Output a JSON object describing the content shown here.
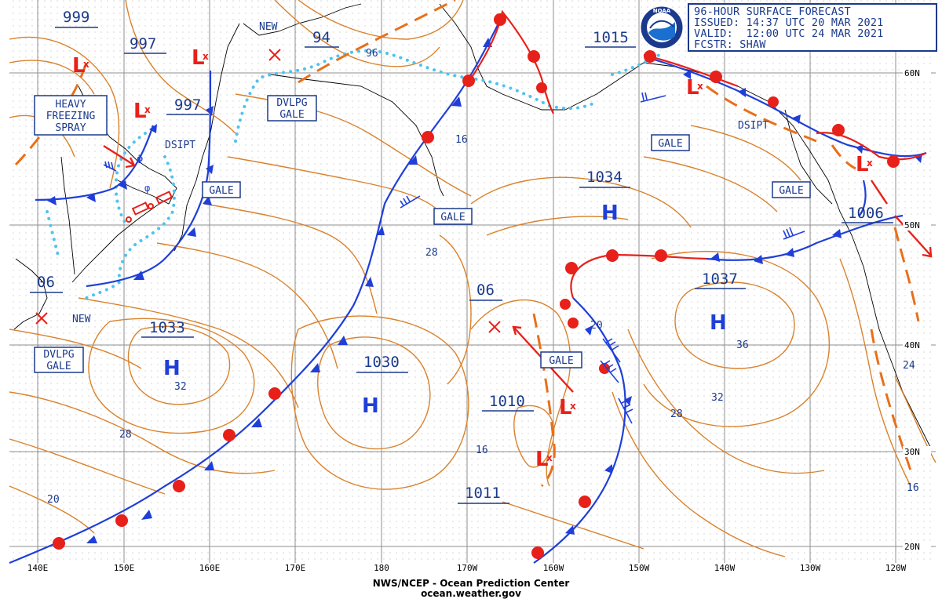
{
  "header": {
    "line1": "96-HOUR SURFACE FORECAST",
    "line2": "ISSUED: 14:37 UTC 20 MAR 2021",
    "line3": "VALID:  12:00 UTC 24 MAR 2021",
    "line4": "FCSTR: SHAW"
  },
  "logo_text": "NOAA",
  "credit": {
    "line1": "NWS/NCEP - Ocean Prediction Center",
    "line2": "ocean.weather.gov"
  },
  "longitudes": [
    "140E",
    "150E",
    "160E",
    "170E",
    "180",
    "170W",
    "160W",
    "150W",
    "140W",
    "130W",
    "120W"
  ],
  "latitudes": [
    "60N",
    "50N",
    "40N",
    "30N",
    "20N"
  ],
  "pressure_labels": [
    "999",
    "997",
    "997",
    "94",
    "1015",
    "1034",
    "1006",
    "1037",
    "1033",
    "1030",
    "06",
    "06",
    "1010",
    "1011"
  ],
  "box_labels": {
    "heavy1": "HEAVY",
    "heavy2": "FREEZING",
    "heavy3": "SPRAY",
    "dvlpg1": "DVLPG",
    "gale_word": "GALE",
    "gale": "GALE"
  },
  "text_labels": {
    "new": "NEW",
    "dsipt": "DSIPT"
  },
  "contour_labels": [
    "96",
    "16",
    "28",
    "20",
    "36",
    "32",
    "28",
    "24",
    "16",
    "32",
    "28",
    "20",
    "16"
  ],
  "symbols": {
    "high": "H",
    "low": "L"
  },
  "colors": {
    "isobar": "#d9822b",
    "warm_front": "#e8201a",
    "cold_front": "#1f3fd8",
    "label_blue": "#1b3a8c",
    "ice_edge": "#4fc3ef",
    "grid": "#9a9a9a"
  }
}
